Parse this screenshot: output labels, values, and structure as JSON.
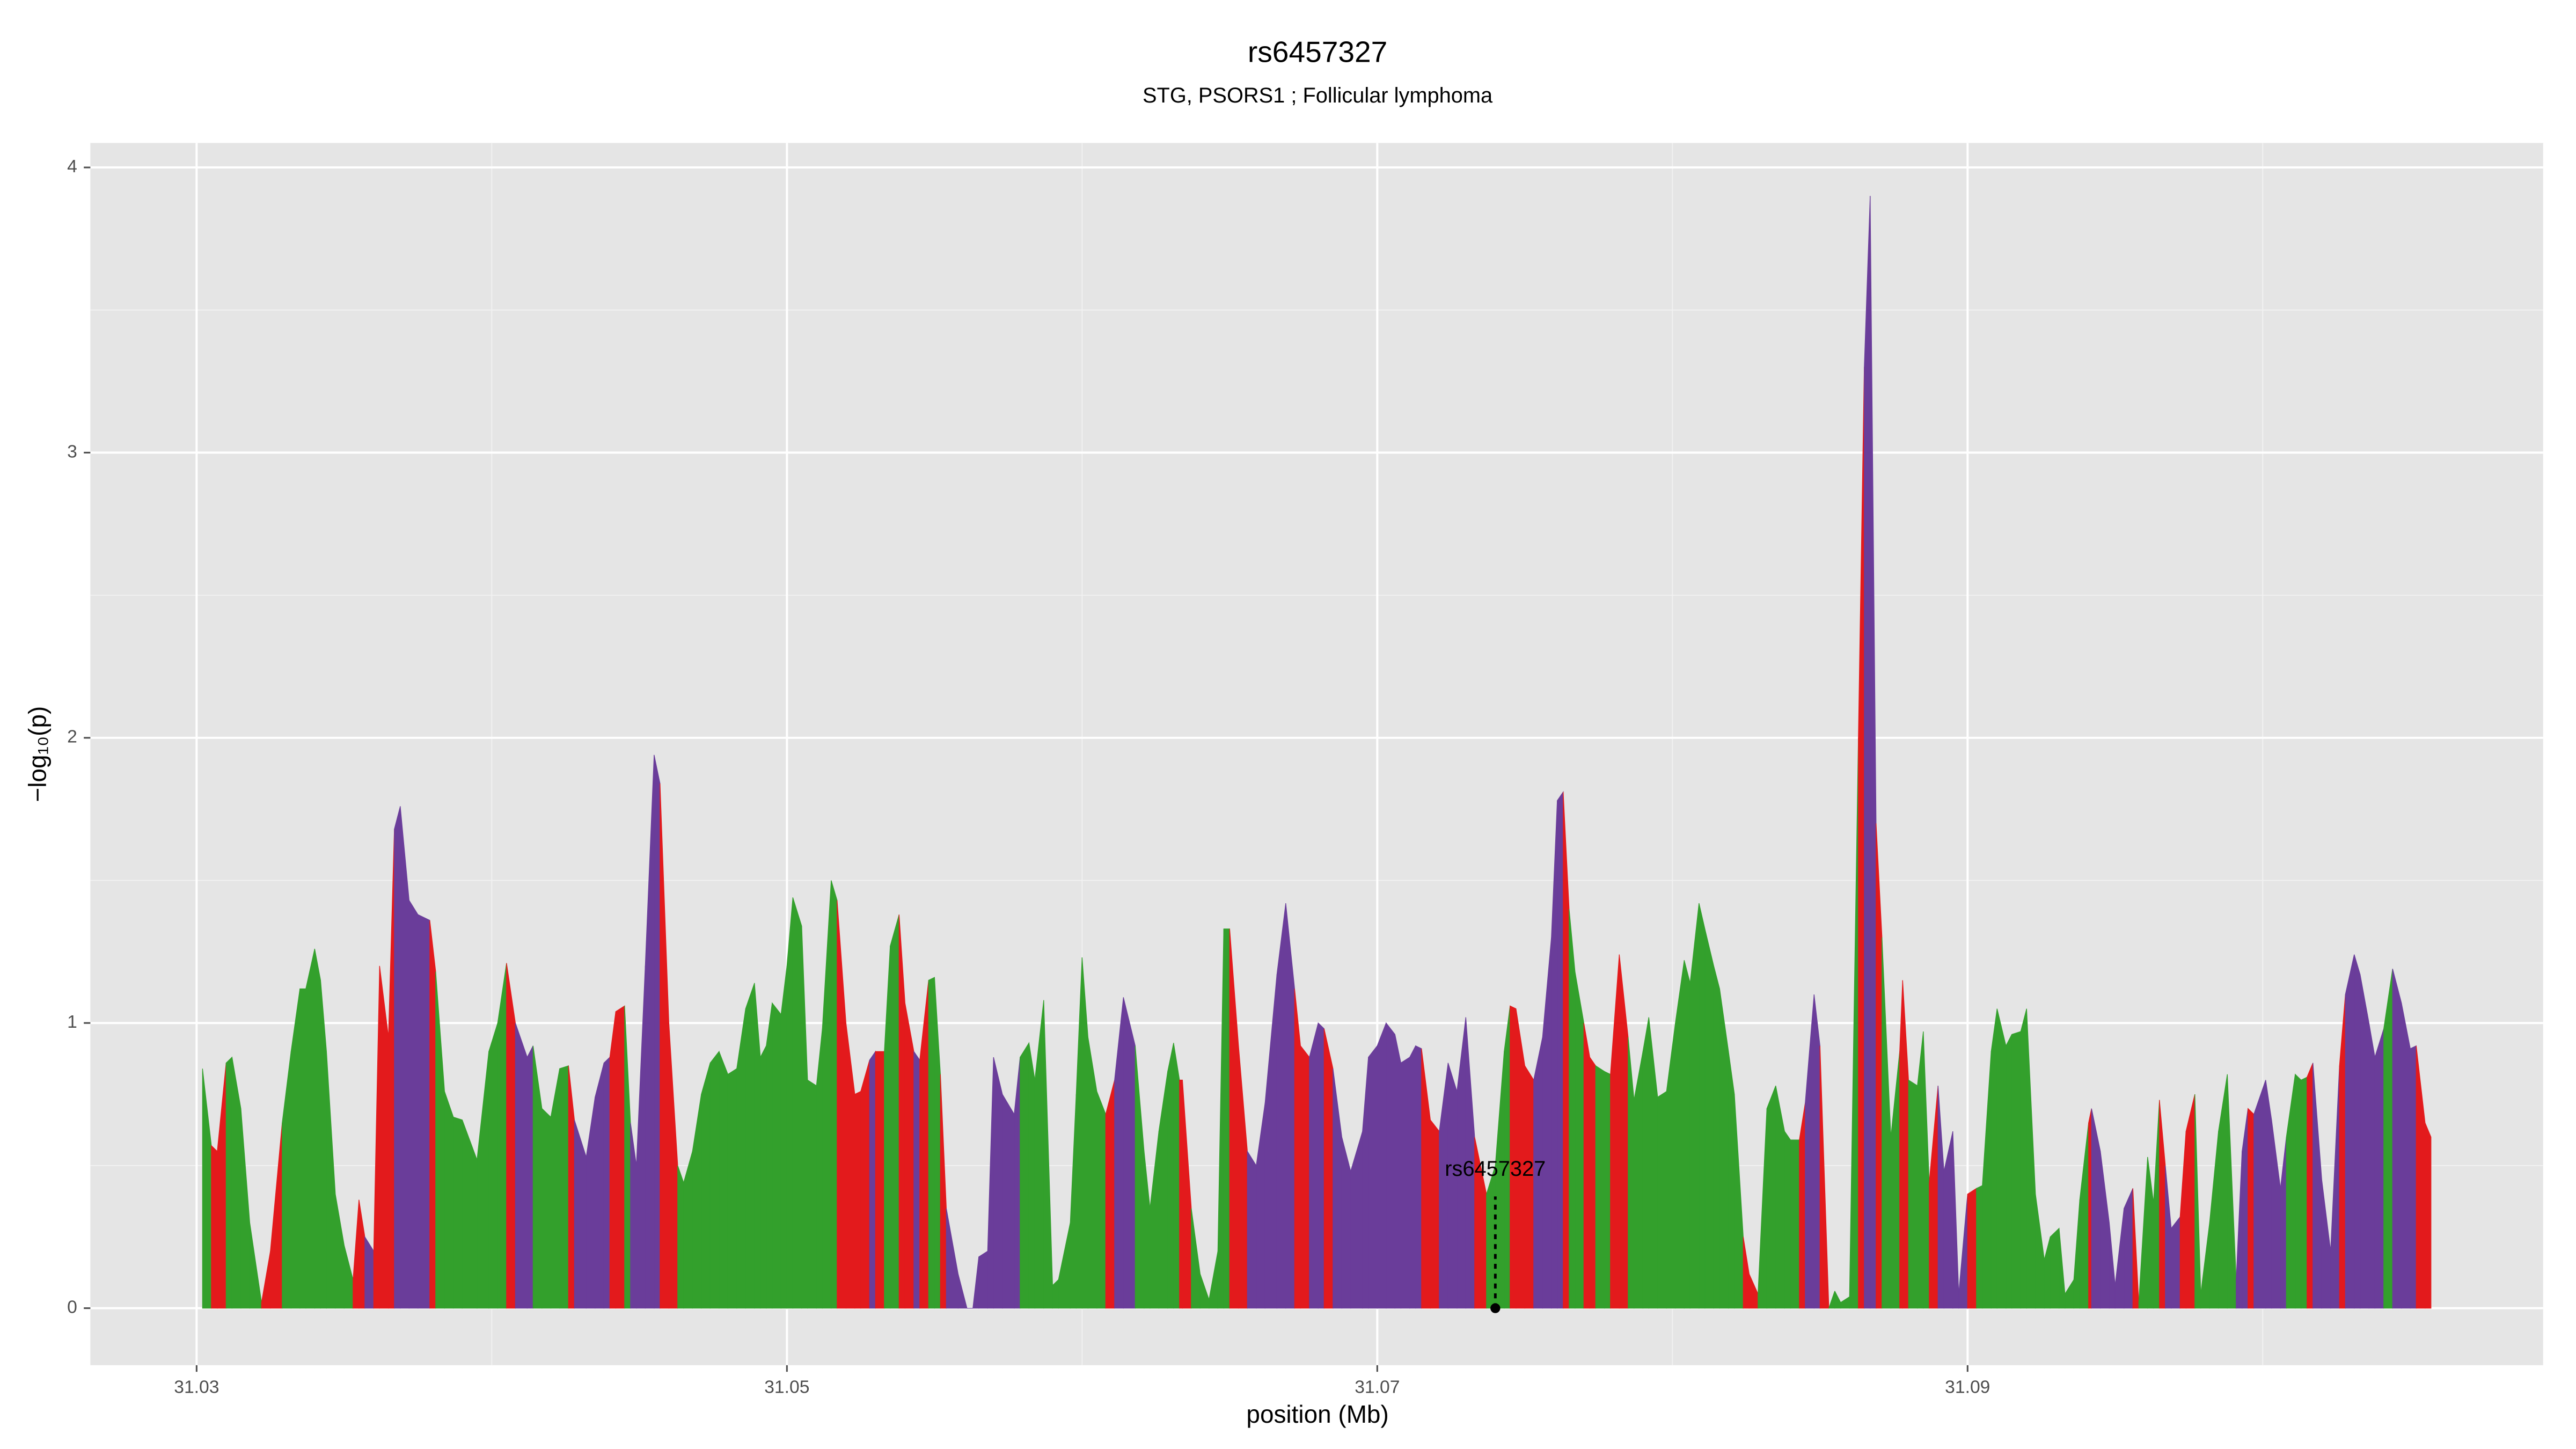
{
  "chart_data": {
    "type": "area",
    "title": "rs6457327",
    "subtitle": "STG, PSORS1 ; Follicular lymphoma",
    "x_label": "position (Mb)",
    "y_label": "−log₁₀(p)",
    "xlim": [
      31.0264,
      31.1095
    ],
    "ylim": [
      -0.2,
      4.086
    ],
    "xticks": [
      31.03,
      31.05,
      31.07,
      31.09
    ],
    "yticks": [
      0,
      1,
      2,
      3,
      4
    ],
    "grid": true,
    "annotation": {
      "text": "rs6457327",
      "x": 31.074,
      "y": 0
    },
    "x": [
      31.0302,
      31.0305,
      31.0307,
      31.031,
      31.0312,
      31.0315,
      31.0318,
      31.0322,
      31.0325,
      31.0329,
      31.0332,
      31.0335,
      31.0337,
      31.034,
      31.0342,
      31.0344,
      31.0347,
      31.035,
      31.0353,
      31.0355,
      31.0357,
      31.036,
      31.0362,
      31.0365,
      31.0367,
      31.0369,
      31.0372,
      31.0375,
      31.0379,
      31.0381,
      31.0384,
      31.0387,
      31.039,
      31.0395,
      31.0399,
      31.0402,
      31.0405,
      31.0408,
      31.0412,
      31.0414,
      31.0417,
      31.042,
      31.0423,
      31.0426,
      31.0428,
      31.0432,
      31.0435,
      31.0438,
      31.044,
      31.0442,
      31.0445,
      31.0447,
      31.0449,
      31.0452,
      31.0455,
      31.0457,
      31.046,
      31.0463,
      31.0465,
      31.0468,
      31.0471,
      31.0474,
      31.0477,
      31.048,
      31.0483,
      31.0486,
      31.0489,
      31.0491,
      31.0493,
      31.0495,
      31.0498,
      31.05,
      31.0502,
      31.0505,
      31.0507,
      31.051,
      31.0512,
      31.0515,
      31.0517,
      31.052,
      31.0523,
      31.0525,
      31.0528,
      31.053,
      31.0533,
      31.0535,
      31.0538,
      31.054,
      31.0543,
      31.0545,
      31.0548,
      31.055,
      31.0552,
      31.0554,
      31.0558,
      31.0561,
      31.0563,
      31.0565,
      31.0568,
      31.057,
      31.0573,
      31.0577,
      31.0579,
      31.0582,
      31.0584,
      31.0587,
      31.059,
      31.0592,
      31.0596,
      31.0598,
      31.06,
      31.0602,
      31.0605,
      31.0608,
      31.0611,
      31.0614,
      31.0618,
      31.0621,
      31.0623,
      31.0626,
      31.0629,
      31.0631,
      31.0633,
      31.0634,
      31.0637,
      31.064,
      31.0643,
      31.0646,
      31.0648,
      31.065,
      31.0653,
      31.0656,
      31.0659,
      31.0662,
      31.0666,
      31.0669,
      31.0672,
      31.0674,
      31.0677,
      31.068,
      31.0682,
      31.0685,
      31.0688,
      31.0691,
      31.0695,
      31.0697,
      31.07,
      31.0703,
      31.0706,
      31.0708,
      31.0711,
      31.0713,
      31.0715,
      31.0718,
      31.0721,
      31.0724,
      31.0727,
      31.073,
      31.0733,
      31.0737,
      31.074,
      31.0743,
      31.0745,
      31.0747,
      31.075,
      31.0753,
      31.0756,
      31.0759,
      31.0761,
      31.0763,
      31.0765,
      31.0767,
      31.077,
      31.0772,
      31.0774,
      31.0777,
      31.0779,
      31.0782,
      31.0785,
      31.0787,
      31.079,
      31.0792,
      31.0795,
      31.0798,
      31.0801,
      31.0804,
      31.0806,
      31.0809,
      31.0811,
      31.0814,
      31.0816,
      31.0819,
      31.0821,
      31.0824,
      31.0826,
      31.0829,
      31.0832,
      31.0835,
      31.0838,
      31.084,
      31.0843,
      31.0845,
      31.0848,
      31.085,
      31.0853,
      31.0855,
      31.0857,
      31.086,
      31.0863,
      31.0865,
      31.0867,
      31.0869,
      31.0871,
      31.0874,
      31.0877,
      31.0878,
      31.088,
      31.0883,
      31.0885,
      31.0887,
      31.089,
      31.0892,
      31.0895,
      31.0897,
      31.09,
      31.0903,
      31.0905,
      31.0908,
      31.091,
      31.0913,
      31.0915,
      31.0918,
      31.092,
      31.0923,
      31.0926,
      31.0928,
      31.0931,
      31.0933,
      31.0936,
      31.0938,
      31.0941,
      31.0942,
      31.0945,
      31.0948,
      31.095,
      31.0953,
      31.0956,
      31.0958,
      31.0961,
      31.0963,
      31.0965,
      31.0967,
      31.0969,
      31.0972,
      31.0974,
      31.0977,
      31.0979,
      31.0982,
      31.0985,
      31.0988,
      31.0991,
      31.0993,
      31.0995,
      31.0997,
      31.1001,
      31.1003,
      31.1006,
      31.1008,
      31.1011,
      31.1013,
      31.1015,
      31.1017,
      31.102,
      31.1023,
      31.1026,
      31.1028,
      31.1031,
      31.1033,
      31.1036,
      31.1038,
      31.1041,
      31.1044,
      31.1047,
      31.105,
      31.1052,
      31.1055,
      31.1057
    ],
    "values": [
      0.84,
      0.57,
      0.55,
      0.86,
      0.88,
      0.7,
      0.3,
      0.02,
      0.2,
      0.65,
      0.9,
      1.12,
      1.12,
      1.26,
      1.15,
      0.9,
      0.4,
      0.22,
      0.1,
      0.38,
      0.25,
      0.2,
      1.2,
      0.95,
      1.68,
      1.76,
      1.43,
      1.38,
      1.36,
      1.18,
      0.76,
      0.67,
      0.66,
      0.52,
      0.9,
      1.0,
      1.21,
      1.0,
      0.88,
      0.92,
      0.7,
      0.67,
      0.84,
      0.85,
      0.66,
      0.53,
      0.74,
      0.86,
      0.88,
      1.04,
      1.06,
      0.65,
      0.5,
      1.2,
      1.94,
      1.84,
      1.0,
      0.5,
      0.44,
      0.55,
      0.75,
      0.86,
      0.9,
      0.82,
      0.84,
      1.05,
      1.14,
      0.88,
      0.92,
      1.07,
      1.03,
      1.2,
      1.44,
      1.34,
      0.8,
      0.78,
      0.98,
      1.5,
      1.43,
      1.0,
      0.75,
      0.76,
      0.87,
      0.9,
      0.9,
      1.27,
      1.38,
      1.07,
      0.9,
      0.87,
      1.15,
      1.16,
      0.82,
      0.35,
      0.12,
      0,
      0,
      0.18,
      0.2,
      0.88,
      0.75,
      0.68,
      0.88,
      0.93,
      0.8,
      1.08,
      0.08,
      0.1,
      0.3,
      0.75,
      1.23,
      0.95,
      0.76,
      0.68,
      0.8,
      1.09,
      0.92,
      0.55,
      0.35,
      0.62,
      0.83,
      0.93,
      0.8,
      0.8,
      0.35,
      0.12,
      0.03,
      0.2,
      1.33,
      1.33,
      0.92,
      0.55,
      0.5,
      0.72,
      1.17,
      1.42,
      1.12,
      0.92,
      0.88,
      1.0,
      0.98,
      0.84,
      0.6,
      0.48,
      0.62,
      0.88,
      0.92,
      1.0,
      0.96,
      0.86,
      0.88,
      0.92,
      0.91,
      0.66,
      0.62,
      0.86,
      0.76,
      1.02,
      0.6,
      0.4,
      0.5,
      0.9,
      1.06,
      1.05,
      0.85,
      0.8,
      0.95,
      1.3,
      1.78,
      1.81,
      1.4,
      1.18,
      1.0,
      0.88,
      0.85,
      0.83,
      0.82,
      1.24,
      0.95,
      0.73,
      0.9,
      1.02,
      0.74,
      0.76,
      1.0,
      1.22,
      1.14,
      1.42,
      1.33,
      1.2,
      1.12,
      0.9,
      0.75,
      0.25,
      0.12,
      0.05,
      0.7,
      0.78,
      0.62,
      0.59,
      0.59,
      0.72,
      1.1,
      0.92,
      0,
      0.06,
      0.02,
      0.04,
      2.0,
      3.3,
      3.9,
      1.7,
      1.3,
      0.6,
      0.9,
      1.15,
      0.8,
      0.78,
      0.97,
      0.44,
      0.78,
      0.48,
      0.62,
      0.05,
      0.4,
      0.42,
      0.43,
      0.9,
      1.05,
      0.92,
      0.96,
      0.97,
      1.05,
      0.4,
      0.17,
      0.25,
      0.28,
      0.05,
      0.1,
      0.38,
      0.65,
      0.7,
      0.55,
      0.3,
      0.08,
      0.35,
      0.42,
      0.02,
      0.53,
      0.37,
      0.73,
      0.5,
      0.28,
      0.32,
      0.62,
      0.75,
      0.05,
      0.3,
      0.62,
      0.82,
      0.1,
      0.55,
      0.7,
      0.68,
      0.8,
      0.66,
      0.42,
      0.6,
      0.82,
      0.8,
      0.81,
      0.86,
      0.45,
      0.2,
      0.85,
      1.1,
      1.24,
      1.17,
      1.0,
      0.88,
      0.98,
      1.19,
      1.07,
      0.91,
      0.92,
      0.65,
      0.6
    ],
    "segment_colors": [
      "#33a02c",
      "#e31a1c",
      "#e31a1c",
      "#33a02c",
      "#33a02c",
      "#33a02c",
      "#33a02c",
      "#e31a1c",
      "#e31a1c",
      "#33a02c",
      "#33a02c",
      "#33a02c",
      "#33a02c",
      "#33a02c",
      "#33a02c",
      "#33a02c",
      "#33a02c",
      "#33a02c",
      "#e31a1c",
      "#e31a1c",
      "#6a3d9a",
      "#e31a1c",
      "#e31a1c",
      "#e31a1c",
      "#6a3d9a",
      "#6a3d9a",
      "#6a3d9a",
      "#6a3d9a",
      "#e31a1c",
      "#33a02c",
      "#33a02c",
      "#33a02c",
      "#33a02c",
      "#33a02c",
      "#33a02c",
      "#33a02c",
      "#e31a1c",
      "#6a3d9a",
      "#6a3d9a",
      "#33a02c",
      "#33a02c",
      "#33a02c",
      "#33a02c",
      "#e31a1c",
      "#6a3d9a",
      "#6a3d9a",
      "#6a3d9a",
      "#6a3d9a",
      "#e31a1c",
      "#e31a1c",
      "#33a02c",
      "#6a3d9a",
      "#6a3d9a",
      "#6a3d9a",
      "#6a3d9a",
      "#e31a1c",
      "#e31a1c",
      "#33a02c",
      "#33a02c",
      "#33a02c",
      "#33a02c",
      "#33a02c",
      "#33a02c",
      "#33a02c",
      "#33a02c",
      "#33a02c",
      "#33a02c",
      "#33a02c",
      "#33a02c",
      "#33a02c",
      "#33a02c",
      "#33a02c",
      "#33a02c",
      "#33a02c",
      "#33a02c",
      "#33a02c",
      "#33a02c",
      "#33a02c",
      "#e31a1c",
      "#e31a1c",
      "#e31a1c",
      "#e31a1c",
      "#6a3d9a",
      "#e31a1c",
      "#33a02c",
      "#33a02c",
      "#e31a1c",
      "#e31a1c",
      "#6a3d9a",
      "#e31a1c",
      "#33a02c",
      "#33a02c",
      "#e31a1c",
      "#6a3d9a",
      "#6a3d9a",
      "#6a3d9a",
      "#6a3d9a",
      "#6a3d9a",
      "#6a3d9a",
      "#6a3d9a",
      "#6a3d9a",
      "#6a3d9a",
      "#33a02c",
      "#33a02c",
      "#33a02c",
      "#33a02c",
      "#33a02c",
      "#33a02c",
      "#33a02c",
      "#33a02c",
      "#33a02c",
      "#33a02c",
      "#33a02c",
      "#e31a1c",
      "#6a3d9a",
      "#6a3d9a",
      "#33a02c",
      "#33a02c",
      "#33a02c",
      "#33a02c",
      "#33a02c",
      "#33a02c",
      "#e31a1c",
      "#e31a1c",
      "#33a02c",
      "#33a02c",
      "#33a02c",
      "#33a02c",
      "#33a02c",
      "#e31a1c",
      "#e31a1c",
      "#6a3d9a",
      "#6a3d9a",
      "#6a3d9a",
      "#6a3d9a",
      "#6a3d9a",
      "#e31a1c",
      "#e31a1c",
      "#6a3d9a",
      "#6a3d9a",
      "#e31a1c",
      "#6a3d9a",
      "#6a3d9a",
      "#6a3d9a",
      "#6a3d9a",
      "#6a3d9a",
      "#6a3d9a",
      "#6a3d9a",
      "#6a3d9a",
      "#6a3d9a",
      "#6a3d9a",
      "#6a3d9a",
      "#e31a1c",
      "#e31a1c",
      "#6a3d9a",
      "#6a3d9a",
      "#6a3d9a",
      "#6a3d9a",
      "#e31a1c",
      "#33a02c",
      "#33a02c",
      "#33a02c",
      "#e31a1c",
      "#e31a1c",
      "#e31a1c",
      "#6a3d9a",
      "#6a3d9a",
      "#6a3d9a",
      "#6a3d9a",
      "#e31a1c",
      "#33a02c",
      "#33a02c",
      "#e31a1c",
      "#e31a1c",
      "#33a02c",
      "#33a02c",
      "#e31a1c",
      "#e31a1c",
      "#33a02c",
      "#33a02c",
      "#33a02c",
      "#33a02c",
      "#33a02c",
      "#33a02c",
      "#33a02c",
      "#33a02c",
      "#33a02c",
      "#33a02c",
      "#33a02c",
      "#33a02c",
      "#33a02c",
      "#33a02c",
      "#33a02c",
      "#e31a1c",
      "#e31a1c",
      "#33a02c",
      "#33a02c",
      "#33a02c",
      "#33a02c",
      "#33a02c",
      "#e31a1c",
      "#6a3d9a",
      "#6a3d9a",
      "#e31a1c",
      "#33a02c",
      "#33a02c",
      "#33a02c",
      "#33a02c",
      "#e31a1c",
      "#6a3d9a",
      "#6a3d9a",
      "#e31a1c",
      "#33a02c",
      "#33a02c",
      "#e31a1c",
      "#e31a1c",
      "#33a02c",
      "#33a02c",
      "#33a02c",
      "#e31a1c",
      "#6a3d9a",
      "#6a3d9a",
      "#6a3d9a",
      "#6a3d9a",
      "#e31a1c",
      "#33a02c",
      "#33a02c",
      "#33a02c",
      "#33a02c",
      "#33a02c",
      "#33a02c",
      "#33a02c",
      "#33a02c",
      "#33a02c",
      "#33a02c",
      "#33a02c",
      "#33a02c",
      "#33a02c",
      "#33a02c",
      "#33a02c",
      "#e31a1c",
      "#6a3d9a",
      "#6a3d9a",
      "#6a3d9a",
      "#6a3d9a",
      "#6a3d9a",
      "#e31a1c",
      "#33a02c",
      "#33a02c",
      "#33a02c",
      "#e31a1c",
      "#6a3d9a",
      "#6a3d9a",
      "#e31a1c",
      "#e31a1c",
      "#33a02c",
      "#33a02c",
      "#33a02c",
      "#33a02c",
      "#33a02c",
      "#6a3d9a",
      "#6a3d9a",
      "#e31a1c",
      "#6a3d9a",
      "#6a3d9a",
      "#6a3d9a",
      "#6a3d9a",
      "#33a02c",
      "#33a02c",
      "#33a02c",
      "#e31a1c",
      "#6a3d9a",
      "#6a3d9a",
      "#6a3d9a",
      "#e31a1c",
      "#6a3d9a",
      "#6a3d9a",
      "#6a3d9a",
      "#6a3d9a",
      "#6a3d9a",
      "#33a02c",
      "#6a3d9a",
      "#6a3d9a",
      "#6a3d9a",
      "#e31a1c",
      "#e31a1c",
      "#e31a1c"
    ]
  }
}
